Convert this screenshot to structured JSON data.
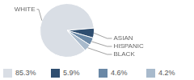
{
  "chart_data": {
    "type": "pie",
    "categories": [
      "WHITE",
      "ASIAN",
      "HISPANIC",
      "BLACK"
    ],
    "values": [
      85.3,
      5.9,
      4.6,
      4.2
    ],
    "value_labels": [
      "85.3%",
      "5.9%",
      "4.6%",
      "4.2%"
    ],
    "colors": [
      "#d9dee5",
      "#2f4e70",
      "#6a88a6",
      "#a8bacc"
    ],
    "data_labels": true
  }
}
